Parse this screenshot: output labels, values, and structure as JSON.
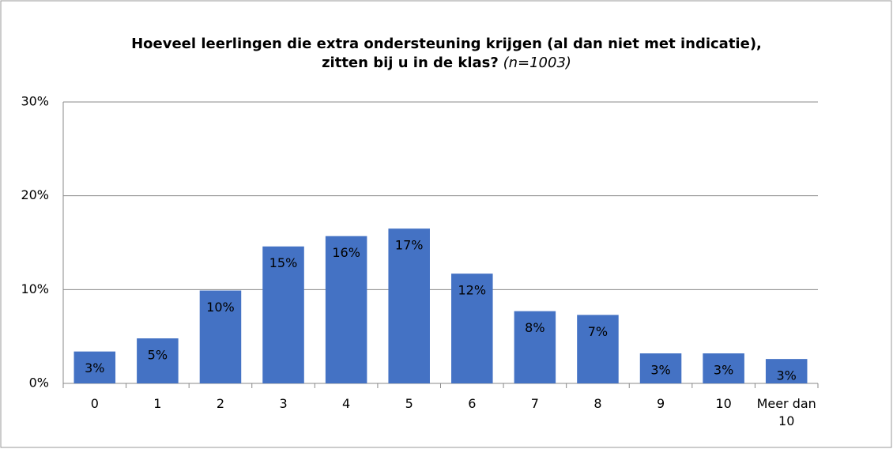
{
  "chart_data": {
    "type": "bar",
    "title": "Hoeveel leerlingen die extra ondersteuning krijgen (al dan niet met indicatie), zitten bij u in de klas?",
    "note": "(n=1003)",
    "categories": [
      "0",
      "1",
      "2",
      "3",
      "4",
      "5",
      "6",
      "7",
      "8",
      "9",
      "10",
      "Meer dan 10"
    ],
    "values": [
      3.4,
      4.8,
      9.9,
      14.6,
      15.7,
      16.5,
      11.7,
      7.7,
      7.3,
      3.2,
      3.2,
      2.6
    ],
    "value_labels": [
      "3%",
      "5%",
      "10%",
      "15%",
      "16%",
      "17%",
      "12%",
      "8%",
      "7%",
      "3%",
      "3%",
      "3%"
    ],
    "color": "#4472c4",
    "ylim": [
      0,
      30
    ],
    "yticks": [
      {
        "value": 0,
        "label": "0%"
      },
      {
        "value": 10,
        "label": "10%"
      },
      {
        "value": 20,
        "label": "20%"
      },
      {
        "value": 30,
        "label": "30%"
      }
    ],
    "grid": true
  }
}
